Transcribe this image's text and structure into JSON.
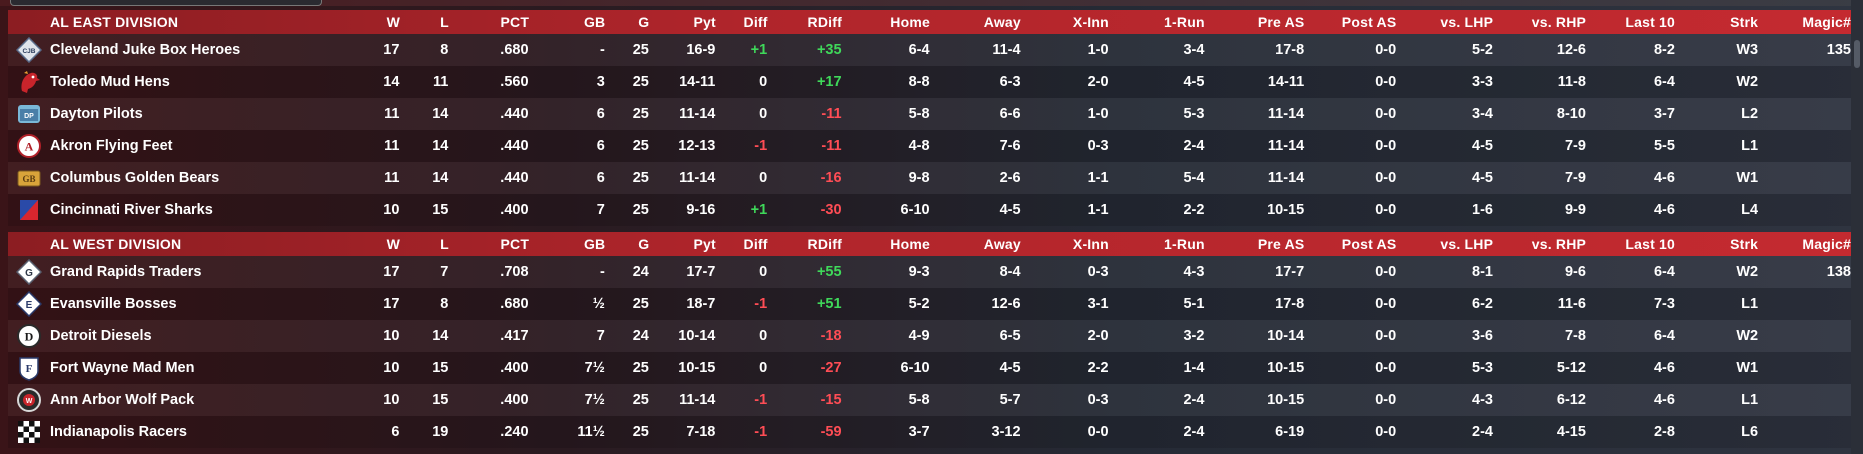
{
  "columns": {
    "w": "W",
    "l": "L",
    "pct": "PCT",
    "gb": "GB",
    "g": "G",
    "pyt": "Pyt",
    "diff": "Diff",
    "rdiff": "RDiff",
    "home": "Home",
    "away": "Away",
    "xinn": "X-Inn",
    "onerun": "1-Run",
    "preas": "Pre AS",
    "postas": "Post AS",
    "lhp": "vs. LHP",
    "rhp": "vs. RHP",
    "last10": "Last 10",
    "strk": "Strk",
    "magic": "Magic#"
  },
  "colors": {
    "positive": "#3fd85a",
    "negative": "#ff4d55",
    "header": "#b0252b"
  },
  "divisions": [
    {
      "name": "AL EAST DIVISION",
      "teams": [
        {
          "logo": "cjb-logo-icon",
          "name": "Cleveland Juke Box Heroes",
          "w": "17",
          "l": "8",
          "pct": ".680",
          "gb": "-",
          "g": "25",
          "pyt": "16-9",
          "diff": "+1",
          "rdiff": "+35",
          "home": "6-4",
          "away": "11-4",
          "xinn": "1-0",
          "onerun": "3-4",
          "preas": "17-8",
          "postas": "0-0",
          "lhp": "5-2",
          "rhp": "12-6",
          "last10": "8-2",
          "strk": "W3",
          "magic": "135"
        },
        {
          "logo": "mud-hen-logo-icon",
          "name": "Toledo  Mud Hens",
          "w": "14",
          "l": "11",
          "pct": ".560",
          "gb": "3",
          "g": "25",
          "pyt": "14-11",
          "diff": "0",
          "rdiff": "+17",
          "home": "8-8",
          "away": "6-3",
          "xinn": "2-0",
          "onerun": "4-5",
          "preas": "14-11",
          "postas": "0-0",
          "lhp": "3-3",
          "rhp": "11-8",
          "last10": "6-4",
          "strk": "W2",
          "magic": ""
        },
        {
          "logo": "pilots-logo-icon",
          "name": "Dayton Pilots",
          "w": "11",
          "l": "14",
          "pct": ".440",
          "gb": "6",
          "g": "25",
          "pyt": "11-14",
          "diff": "0",
          "rdiff": "-11",
          "home": "5-8",
          "away": "6-6",
          "xinn": "1-0",
          "onerun": "5-3",
          "preas": "11-14",
          "postas": "0-0",
          "lhp": "3-4",
          "rhp": "8-10",
          "last10": "3-7",
          "strk": "L2",
          "magic": ""
        },
        {
          "logo": "akron-a-logo-icon",
          "name": "Akron  Flying Feet",
          "w": "11",
          "l": "14",
          "pct": ".440",
          "gb": "6",
          "g": "25",
          "pyt": "12-13",
          "diff": "-1",
          "rdiff": "-11",
          "home": "4-8",
          "away": "7-6",
          "xinn": "0-3",
          "onerun": "2-4",
          "preas": "11-14",
          "postas": "0-0",
          "lhp": "4-5",
          "rhp": "7-9",
          "last10": "5-5",
          "strk": "L1",
          "magic": ""
        },
        {
          "logo": "golden-bears-logo-icon",
          "name": "Columbus Golden Bears",
          "w": "11",
          "l": "14",
          "pct": ".440",
          "gb": "6",
          "g": "25",
          "pyt": "11-14",
          "diff": "0",
          "rdiff": "-16",
          "home": "9-8",
          "away": "2-6",
          "xinn": "1-1",
          "onerun": "5-4",
          "preas": "11-14",
          "postas": "0-0",
          "lhp": "4-5",
          "rhp": "7-9",
          "last10": "4-6",
          "strk": "W1",
          "magic": ""
        },
        {
          "logo": "river-sharks-logo-icon",
          "name": "Cincinnati River Sharks",
          "w": "10",
          "l": "15",
          "pct": ".400",
          "gb": "7",
          "g": "25",
          "pyt": "9-16",
          "diff": "+1",
          "rdiff": "-30",
          "home": "6-10",
          "away": "4-5",
          "xinn": "1-1",
          "onerun": "2-2",
          "preas": "10-15",
          "postas": "0-0",
          "lhp": "1-6",
          "rhp": "9-9",
          "last10": "4-6",
          "strk": "L4",
          "magic": ""
        }
      ]
    },
    {
      "name": "AL WEST DIVISION",
      "teams": [
        {
          "logo": "grand-rapids-logo-icon",
          "name": "Grand Rapids Traders",
          "w": "17",
          "l": "7",
          "pct": ".708",
          "gb": "-",
          "g": "24",
          "pyt": "17-7",
          "diff": "0",
          "rdiff": "+55",
          "home": "9-3",
          "away": "8-4",
          "xinn": "0-3",
          "onerun": "4-3",
          "preas": "17-7",
          "postas": "0-0",
          "lhp": "8-1",
          "rhp": "9-6",
          "last10": "6-4",
          "strk": "W2",
          "magic": "138"
        },
        {
          "logo": "evansville-e-logo-icon",
          "name": "Evansville Bosses",
          "w": "17",
          "l": "8",
          "pct": ".680",
          "gb": "½",
          "g": "25",
          "pyt": "18-7",
          "diff": "-1",
          "rdiff": "+51",
          "home": "5-2",
          "away": "12-6",
          "xinn": "3-1",
          "onerun": "5-1",
          "preas": "17-8",
          "postas": "0-0",
          "lhp": "6-2",
          "rhp": "11-6",
          "last10": "7-3",
          "strk": "L1",
          "magic": ""
        },
        {
          "logo": "detroit-d-logo-icon",
          "name": "Detroit Diesels",
          "w": "10",
          "l": "14",
          "pct": ".417",
          "gb": "7",
          "g": "24",
          "pyt": "10-14",
          "diff": "0",
          "rdiff": "-18",
          "home": "4-9",
          "away": "6-5",
          "xinn": "2-0",
          "onerun": "3-2",
          "preas": "10-14",
          "postas": "0-0",
          "lhp": "3-6",
          "rhp": "7-8",
          "last10": "6-4",
          "strk": "W2",
          "magic": ""
        },
        {
          "logo": "fort-wayne-f-logo-icon",
          "name": "Fort Wayne Mad Men",
          "w": "10",
          "l": "15",
          "pct": ".400",
          "gb": "7½",
          "g": "25",
          "pyt": "10-15",
          "diff": "0",
          "rdiff": "-27",
          "home": "6-10",
          "away": "4-5",
          "xinn": "2-2",
          "onerun": "1-4",
          "preas": "10-15",
          "postas": "0-0",
          "lhp": "5-3",
          "rhp": "5-12",
          "last10": "4-6",
          "strk": "W1",
          "magic": ""
        },
        {
          "logo": "wolf-pack-logo-icon",
          "name": "Ann Arbor Wolf Pack",
          "w": "10",
          "l": "15",
          "pct": ".400",
          "gb": "7½",
          "g": "25",
          "pyt": "11-14",
          "diff": "-1",
          "rdiff": "-15",
          "home": "5-8",
          "away": "5-7",
          "xinn": "0-3",
          "onerun": "2-4",
          "preas": "10-15",
          "postas": "0-0",
          "lhp": "4-3",
          "rhp": "6-12",
          "last10": "4-6",
          "strk": "L1",
          "magic": ""
        },
        {
          "logo": "checkered-flag-logo-icon",
          "name": "Indianapolis Racers",
          "w": "6",
          "l": "19",
          "pct": ".240",
          "gb": "11½",
          "g": "25",
          "pyt": "7-18",
          "diff": "-1",
          "rdiff": "-59",
          "home": "3-7",
          "away": "3-12",
          "xinn": "0-0",
          "onerun": "2-4",
          "preas": "6-19",
          "postas": "0-0",
          "lhp": "2-4",
          "rhp": "4-15",
          "last10": "2-8",
          "strk": "L6",
          "magic": ""
        }
      ]
    }
  ]
}
